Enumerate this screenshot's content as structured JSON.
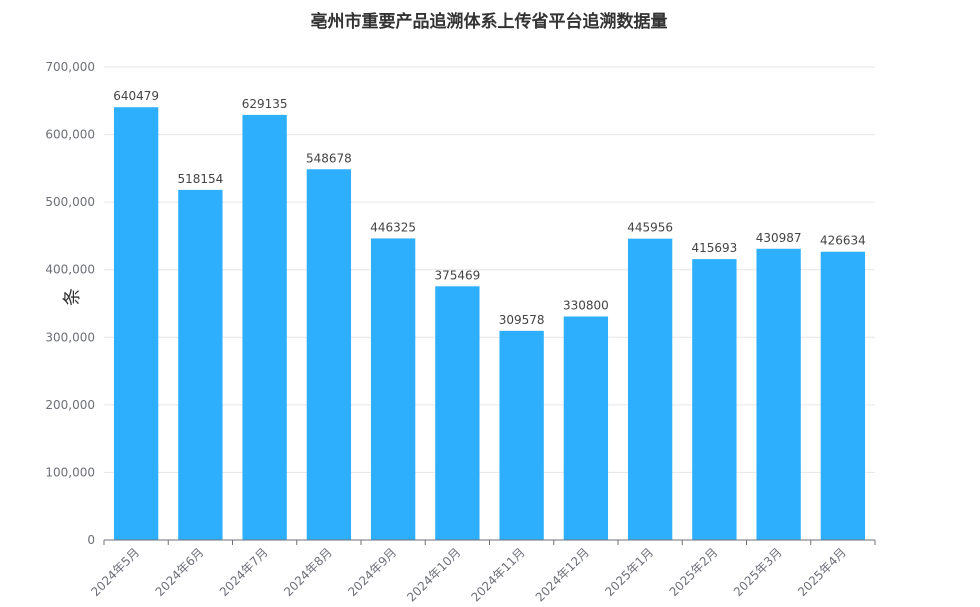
{
  "chart_data": {
    "type": "bar",
    "title": "亳州市重要产品追溯体系上传省平台追溯数据量",
    "xlabel": "",
    "ylabel": "条",
    "ylim": [
      0,
      700000
    ],
    "yticks": [
      0,
      100000,
      200000,
      300000,
      400000,
      500000,
      600000,
      700000
    ],
    "ytick_labels": [
      "0",
      "100,000",
      "200,000",
      "300,000",
      "400,000",
      "500,000",
      "600,000",
      "700,000"
    ],
    "categories": [
      "2024年5月",
      "2024年6月",
      "2024年7月",
      "2024年8月",
      "2024年9月",
      "2024年10月",
      "2024年11月",
      "2024年12月",
      "2025年1月",
      "2025年2月",
      "2025年3月",
      "2025年4月"
    ],
    "values": [
      640479,
      518154,
      629135,
      548678,
      446325,
      375469,
      309578,
      330800,
      445956,
      415693,
      430987,
      426634
    ],
    "grid": true,
    "legend": "none",
    "bar_color": "#2eaffd"
  }
}
